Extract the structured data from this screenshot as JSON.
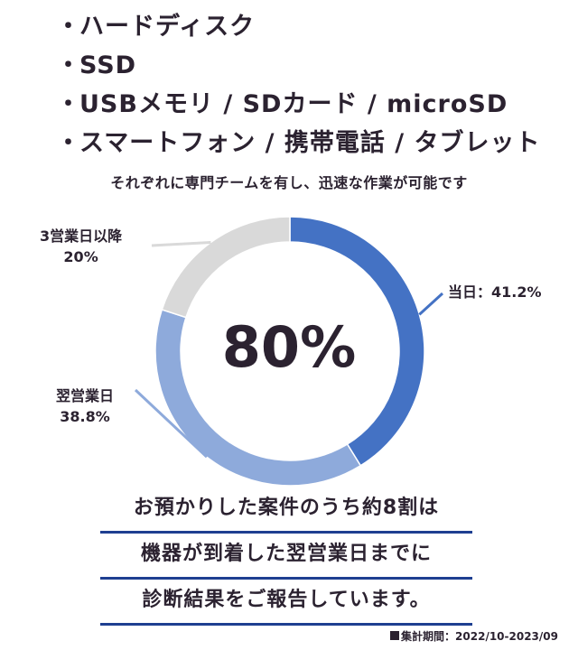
{
  "media_list": {
    "bullet": "・",
    "items": [
      "ハードディスク",
      "SSD",
      "USBメモリ / SDカード / microSD",
      "スマートフォン / 携帯電話 / タブレット"
    ]
  },
  "subtitle": "それぞれに専門チームを有し、迅速な作業が可能です",
  "center_value": "80%",
  "labels": {
    "same_day": "当日：41.2%",
    "next_day_name": "翌営業日",
    "next_day_value": "38.8%",
    "three_day_name": "3営業日以降",
    "three_day_value": "20%"
  },
  "summary_lines": [
    "お預かりした案件のうち約8割は",
    "機器が到着した翌営業日までに",
    "診断結果をご報告しています。"
  ],
  "period": "集計期間：2022/10-2023/09",
  "colors": {
    "same_day": "#4472c4",
    "next_day": "#8eaadb",
    "three_day": "#d9d9d9",
    "underline": "#1e3f91",
    "text": "#2b2230"
  },
  "chart_data": {
    "type": "pie",
    "donut": true,
    "start_angle_deg": 0,
    "direction": "clockwise",
    "categories": [
      "当日",
      "翌営業日",
      "3営業日以降"
    ],
    "values": [
      41.2,
      38.8,
      20
    ]
  }
}
